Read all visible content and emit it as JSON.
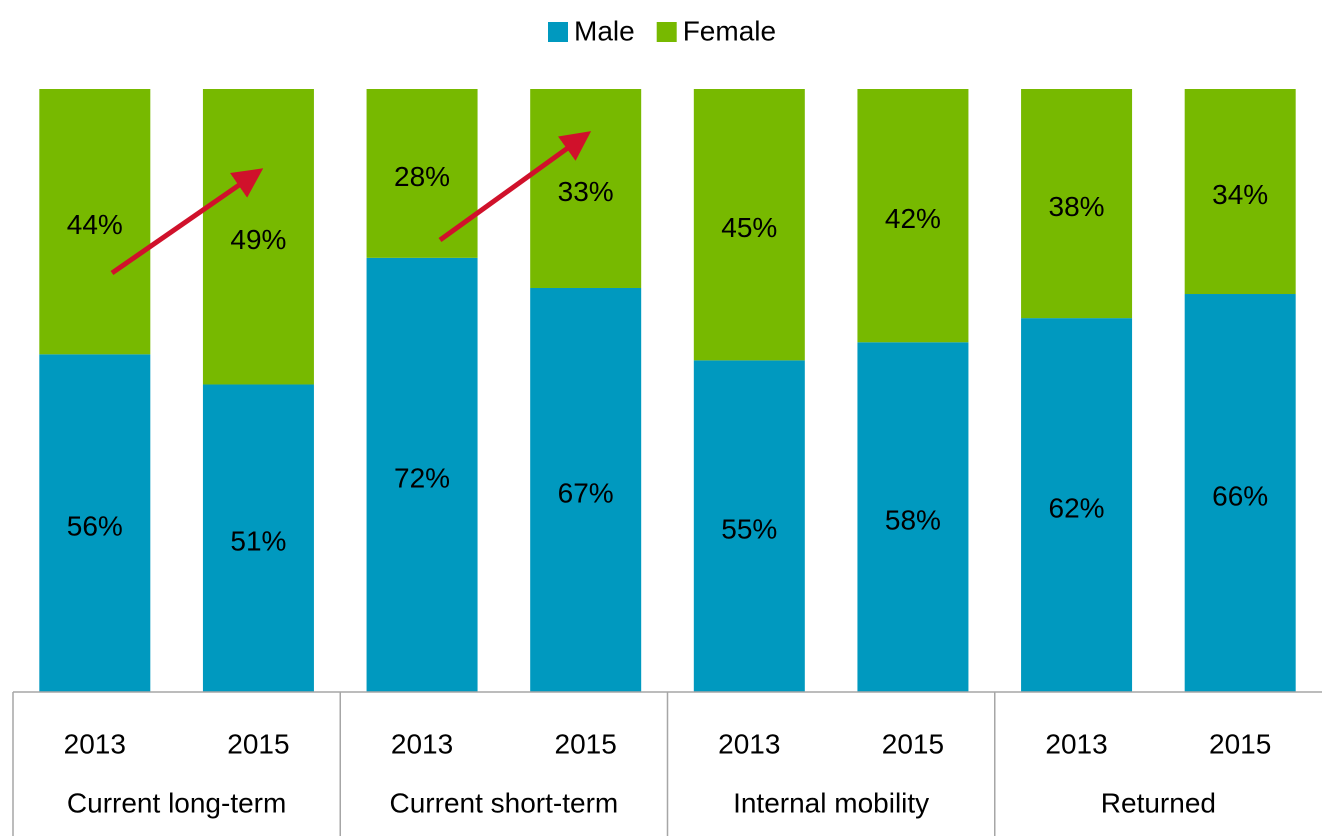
{
  "chart_data": {
    "type": "stacked_bar_100",
    "categories": [
      "2013",
      "2015",
      "2013",
      "2015",
      "2013",
      "2015",
      "2013",
      "2015"
    ],
    "groups": [
      "Current long-term",
      "Current short-term",
      "Internal mobility",
      "Returned"
    ],
    "series": [
      {
        "name": "Male",
        "color": "#0099bf",
        "values": [
          56,
          51,
          72,
          67,
          55,
          58,
          62,
          66
        ],
        "value_labels": [
          "56%",
          "51%",
          "72%",
          "67%",
          "55%",
          "58%",
          "62%",
          "66%"
        ]
      },
      {
        "name": "Female",
        "color": "#77b900",
        "values": [
          44,
          49,
          28,
          33,
          45,
          42,
          38,
          34
        ],
        "value_labels": [
          "44%",
          "49%",
          "28%",
          "33%",
          "45%",
          "42%",
          "38%",
          "34%"
        ]
      }
    ],
    "ylim": [
      0,
      100
    ],
    "legend": "top"
  }
}
